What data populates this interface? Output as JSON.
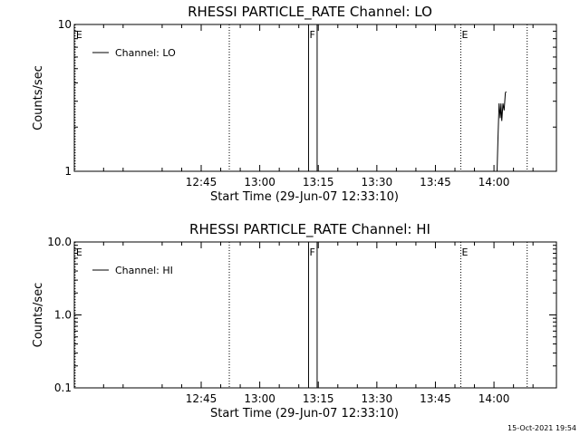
{
  "footer": {
    "timestamp": "15-Oct-2021 19:54"
  },
  "chart_data": [
    {
      "type": "line",
      "title": "RHESSI PARTICLE_RATE Channel: LO",
      "xlabel": "Start Time (29-Jun-07 12:33:10)",
      "ylabel": "Counts/sec",
      "yscale": "log",
      "ylim": [
        1,
        10
      ],
      "xlim_minutes": [
        12.5,
        102.5
      ],
      "x_ticks": [
        {
          "label": "12:45",
          "minutes": 45
        },
        {
          "label": "13:00",
          "minutes": 60
        },
        {
          "label": "13:15",
          "minutes": 75
        },
        {
          "label": "13:30",
          "minutes": 90
        },
        {
          "label": "13:45",
          "minutes": 105
        },
        {
          "label": "14:00",
          "minutes": 120
        }
      ],
      "y_ticks": [
        {
          "label": "1",
          "value": 1
        },
        {
          "label": "10",
          "value": 10
        }
      ],
      "legend": {
        "position": "top-left",
        "entries": [
          "Channel: LO"
        ]
      },
      "grid": false,
      "series": [
        {
          "name": "Channel: LO",
          "x_minutes": [
            120.8,
            121.0,
            121.3,
            121.6,
            121.8,
            122.0,
            122.3,
            122.6,
            122.9,
            123.1
          ],
          "values": [
            1,
            1.6,
            2.9,
            2.3,
            2.9,
            2.2,
            2.9,
            2.6,
            3.4,
            3.5
          ]
        }
      ],
      "markers": [
        {
          "label": "E",
          "minutes": 12.7,
          "style": "dotted"
        },
        {
          "label": "",
          "minutes": 52.2,
          "style": "dotted"
        },
        {
          "label": "F",
          "minutes": 72.5,
          "style": "solid"
        },
        {
          "label": "",
          "minutes": 74.7,
          "style": "solid"
        },
        {
          "label": "E",
          "minutes": 111.5,
          "style": "dotted"
        },
        {
          "label": "",
          "minutes": 128.5,
          "style": "dotted"
        }
      ]
    },
    {
      "type": "line",
      "title": "RHESSI PARTICLE_RATE Channel: HI",
      "xlabel": "Start Time (29-Jun-07 12:33:10)",
      "ylabel": "Counts/sec",
      "yscale": "log",
      "ylim": [
        0.1,
        10
      ],
      "x_ticks": [
        {
          "label": "12:45",
          "minutes": 45
        },
        {
          "label": "13:00",
          "minutes": 60
        },
        {
          "label": "13:15",
          "minutes": 75
        },
        {
          "label": "13:30",
          "minutes": 90
        },
        {
          "label": "13:45",
          "minutes": 105
        },
        {
          "label": "14:00",
          "minutes": 120
        }
      ],
      "y_ticks": [
        {
          "label": "0.1",
          "value": 0.1
        },
        {
          "label": "1.0",
          "value": 1
        },
        {
          "label": "10.0",
          "value": 10
        }
      ],
      "legend": {
        "position": "top-left",
        "entries": [
          "Channel: HI"
        ]
      },
      "grid": false,
      "series": [
        {
          "name": "Channel: HI",
          "x_minutes": [],
          "values": []
        }
      ],
      "markers": [
        {
          "label": "E",
          "minutes": 12.7,
          "style": "dotted"
        },
        {
          "label": "",
          "minutes": 52.2,
          "style": "dotted"
        },
        {
          "label": "F",
          "minutes": 72.5,
          "style": "solid"
        },
        {
          "label": "",
          "minutes": 74.7,
          "style": "solid"
        },
        {
          "label": "E",
          "minutes": 111.5,
          "style": "dotted"
        },
        {
          "label": "",
          "minutes": 128.5,
          "style": "dotted"
        }
      ]
    }
  ]
}
